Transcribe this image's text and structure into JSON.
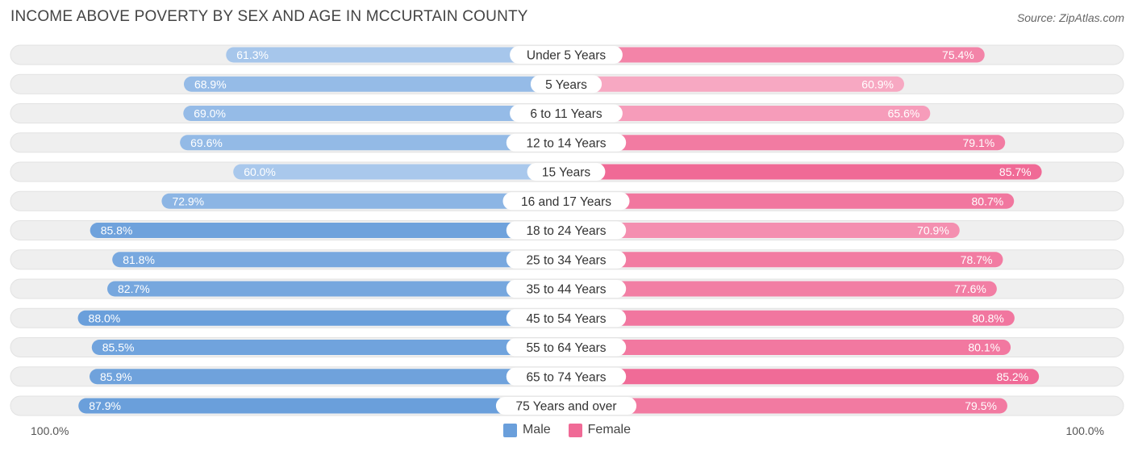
{
  "header": {
    "title": "INCOME ABOVE POVERTY BY SEX AND AGE IN MCCURTAIN COUNTY",
    "source": "Source: ZipAtlas.com"
  },
  "axis": {
    "left_label": "100.0%",
    "right_label": "100.0%"
  },
  "legend": {
    "male_label": "Male",
    "female_label": "Female"
  },
  "colors": {
    "male_strong": "#6a9fdb",
    "male_light": "#a9c8ec",
    "female_strong": "#f06a96",
    "female_light": "#f7a8c2",
    "track": "#efefef"
  },
  "chart_data": {
    "type": "bar",
    "orientation": "diverging-horizontal",
    "title": "INCOME ABOVE POVERTY BY SEX AND AGE IN MCCURTAIN COUNTY",
    "xlim": [
      0,
      100
    ],
    "categories": [
      "Under 5 Years",
      "5 Years",
      "6 to 11 Years",
      "12 to 14 Years",
      "15 Years",
      "16 and 17 Years",
      "18 to 24 Years",
      "25 to 34 Years",
      "35 to 44 Years",
      "45 to 54 Years",
      "55 to 64 Years",
      "65 to 74 Years",
      "75 Years and over"
    ],
    "series": [
      {
        "name": "Male",
        "values": [
          61.3,
          68.9,
          69.0,
          69.6,
          60.0,
          72.9,
          85.8,
          81.8,
          82.7,
          88.0,
          85.5,
          85.9,
          87.9
        ]
      },
      {
        "name": "Female",
        "values": [
          75.4,
          60.9,
          65.6,
          79.1,
          85.7,
          80.7,
          70.9,
          78.7,
          77.6,
          80.8,
          80.1,
          85.2,
          79.5
        ]
      }
    ],
    "legend_position": "bottom-center"
  }
}
